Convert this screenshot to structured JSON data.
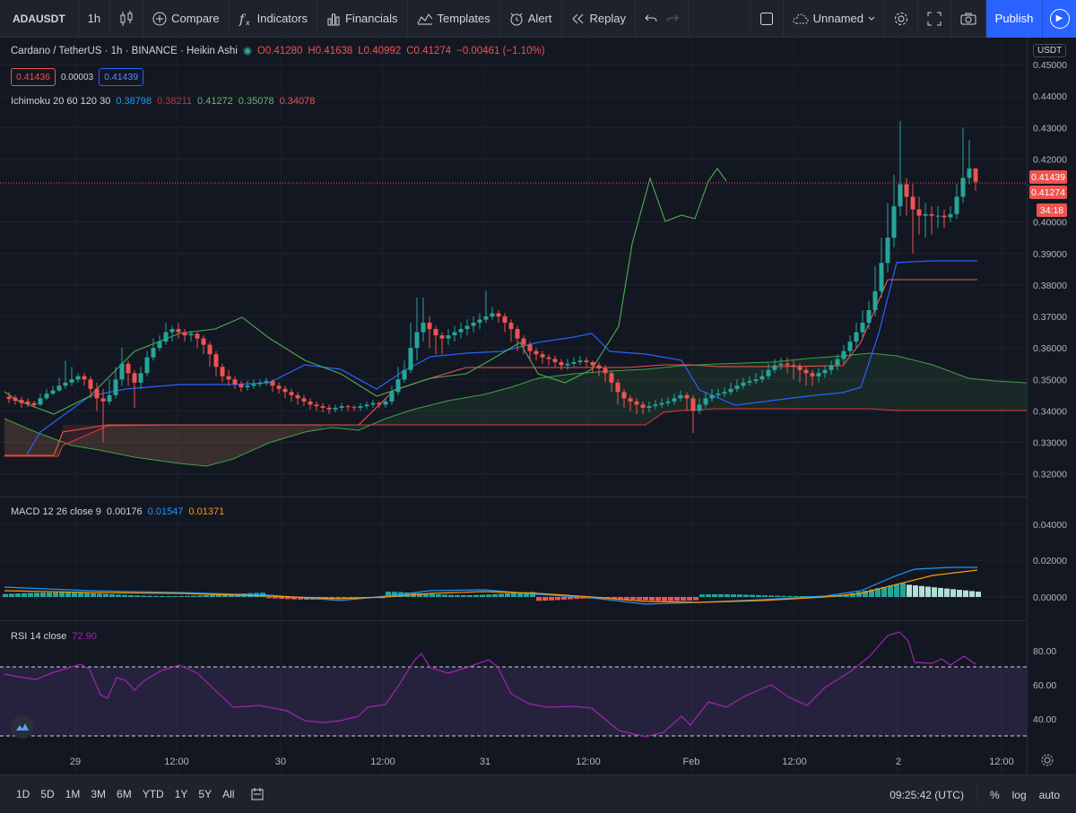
{
  "toolbar": {
    "symbol": "ADAUSDT",
    "interval": "1h",
    "compare": "Compare",
    "indicators": "Indicators",
    "financials": "Financials",
    "templates": "Templates",
    "alert": "Alert",
    "replay": "Replay",
    "layout_name": "Unnamed",
    "publish": "Publish"
  },
  "legend": {
    "title": "Cardano / TetherUS · 1h · BINANCE · Heikin Ashi",
    "open": "O0.41280",
    "high": "H0.41638",
    "low": "L0.40992",
    "close": "C0.41274",
    "change": "−0.00461 (−1.10%)",
    "bid": "0.41436",
    "spread": "0.00003",
    "ask": "0.41439"
  },
  "ichimoku": {
    "label": "Ichimoku 20 60 120 30",
    "v1": "0.38798",
    "v2": "0.38211",
    "v3": "0.41272",
    "v4": "0.35078",
    "v5": "0.34078"
  },
  "macd": {
    "label": "MACD 12 26 close 9",
    "v1": "0.00176",
    "v2": "0.01547",
    "v3": "0.01371"
  },
  "rsi": {
    "label": "RSI 14 close",
    "value": "72.90"
  },
  "price_scale": {
    "currency": "USDT",
    "ticks": [
      "0.45000",
      "0.44000",
      "0.43000",
      "0.42000",
      "0.40000",
      "0.39000",
      "0.38000",
      "0.37000",
      "0.36000",
      "0.35000",
      "0.34000",
      "0.33000",
      "0.32000"
    ],
    "last_price_1": "0.41439",
    "last_price_2": "0.41274",
    "countdown": "34:18"
  },
  "macd_scale": {
    "ticks": [
      "0.04000",
      "0.02000",
      "0.00000"
    ]
  },
  "rsi_scale": {
    "ticks": [
      "80.00",
      "60.00",
      "40.00"
    ]
  },
  "time_axis": {
    "labels": [
      "29",
      "12:00",
      "30",
      "12:00",
      "31",
      "12:00",
      "Feb",
      "12:00",
      "2",
      "12:00"
    ]
  },
  "bottombar": {
    "ranges": [
      "1D",
      "5D",
      "1M",
      "3M",
      "6M",
      "YTD",
      "1Y",
      "5Y",
      "All"
    ],
    "clock": "09:25:42 (UTC)",
    "percent": "%",
    "log": "log",
    "auto": "auto"
  },
  "colors": {
    "up": "#26a69a",
    "down": "#ef5350",
    "kijun": "#2962ff",
    "tenkan": "#ef5350",
    "chikou": "#4caf50",
    "rsi": "#9c27b0",
    "accent": "#2962ff"
  }
}
